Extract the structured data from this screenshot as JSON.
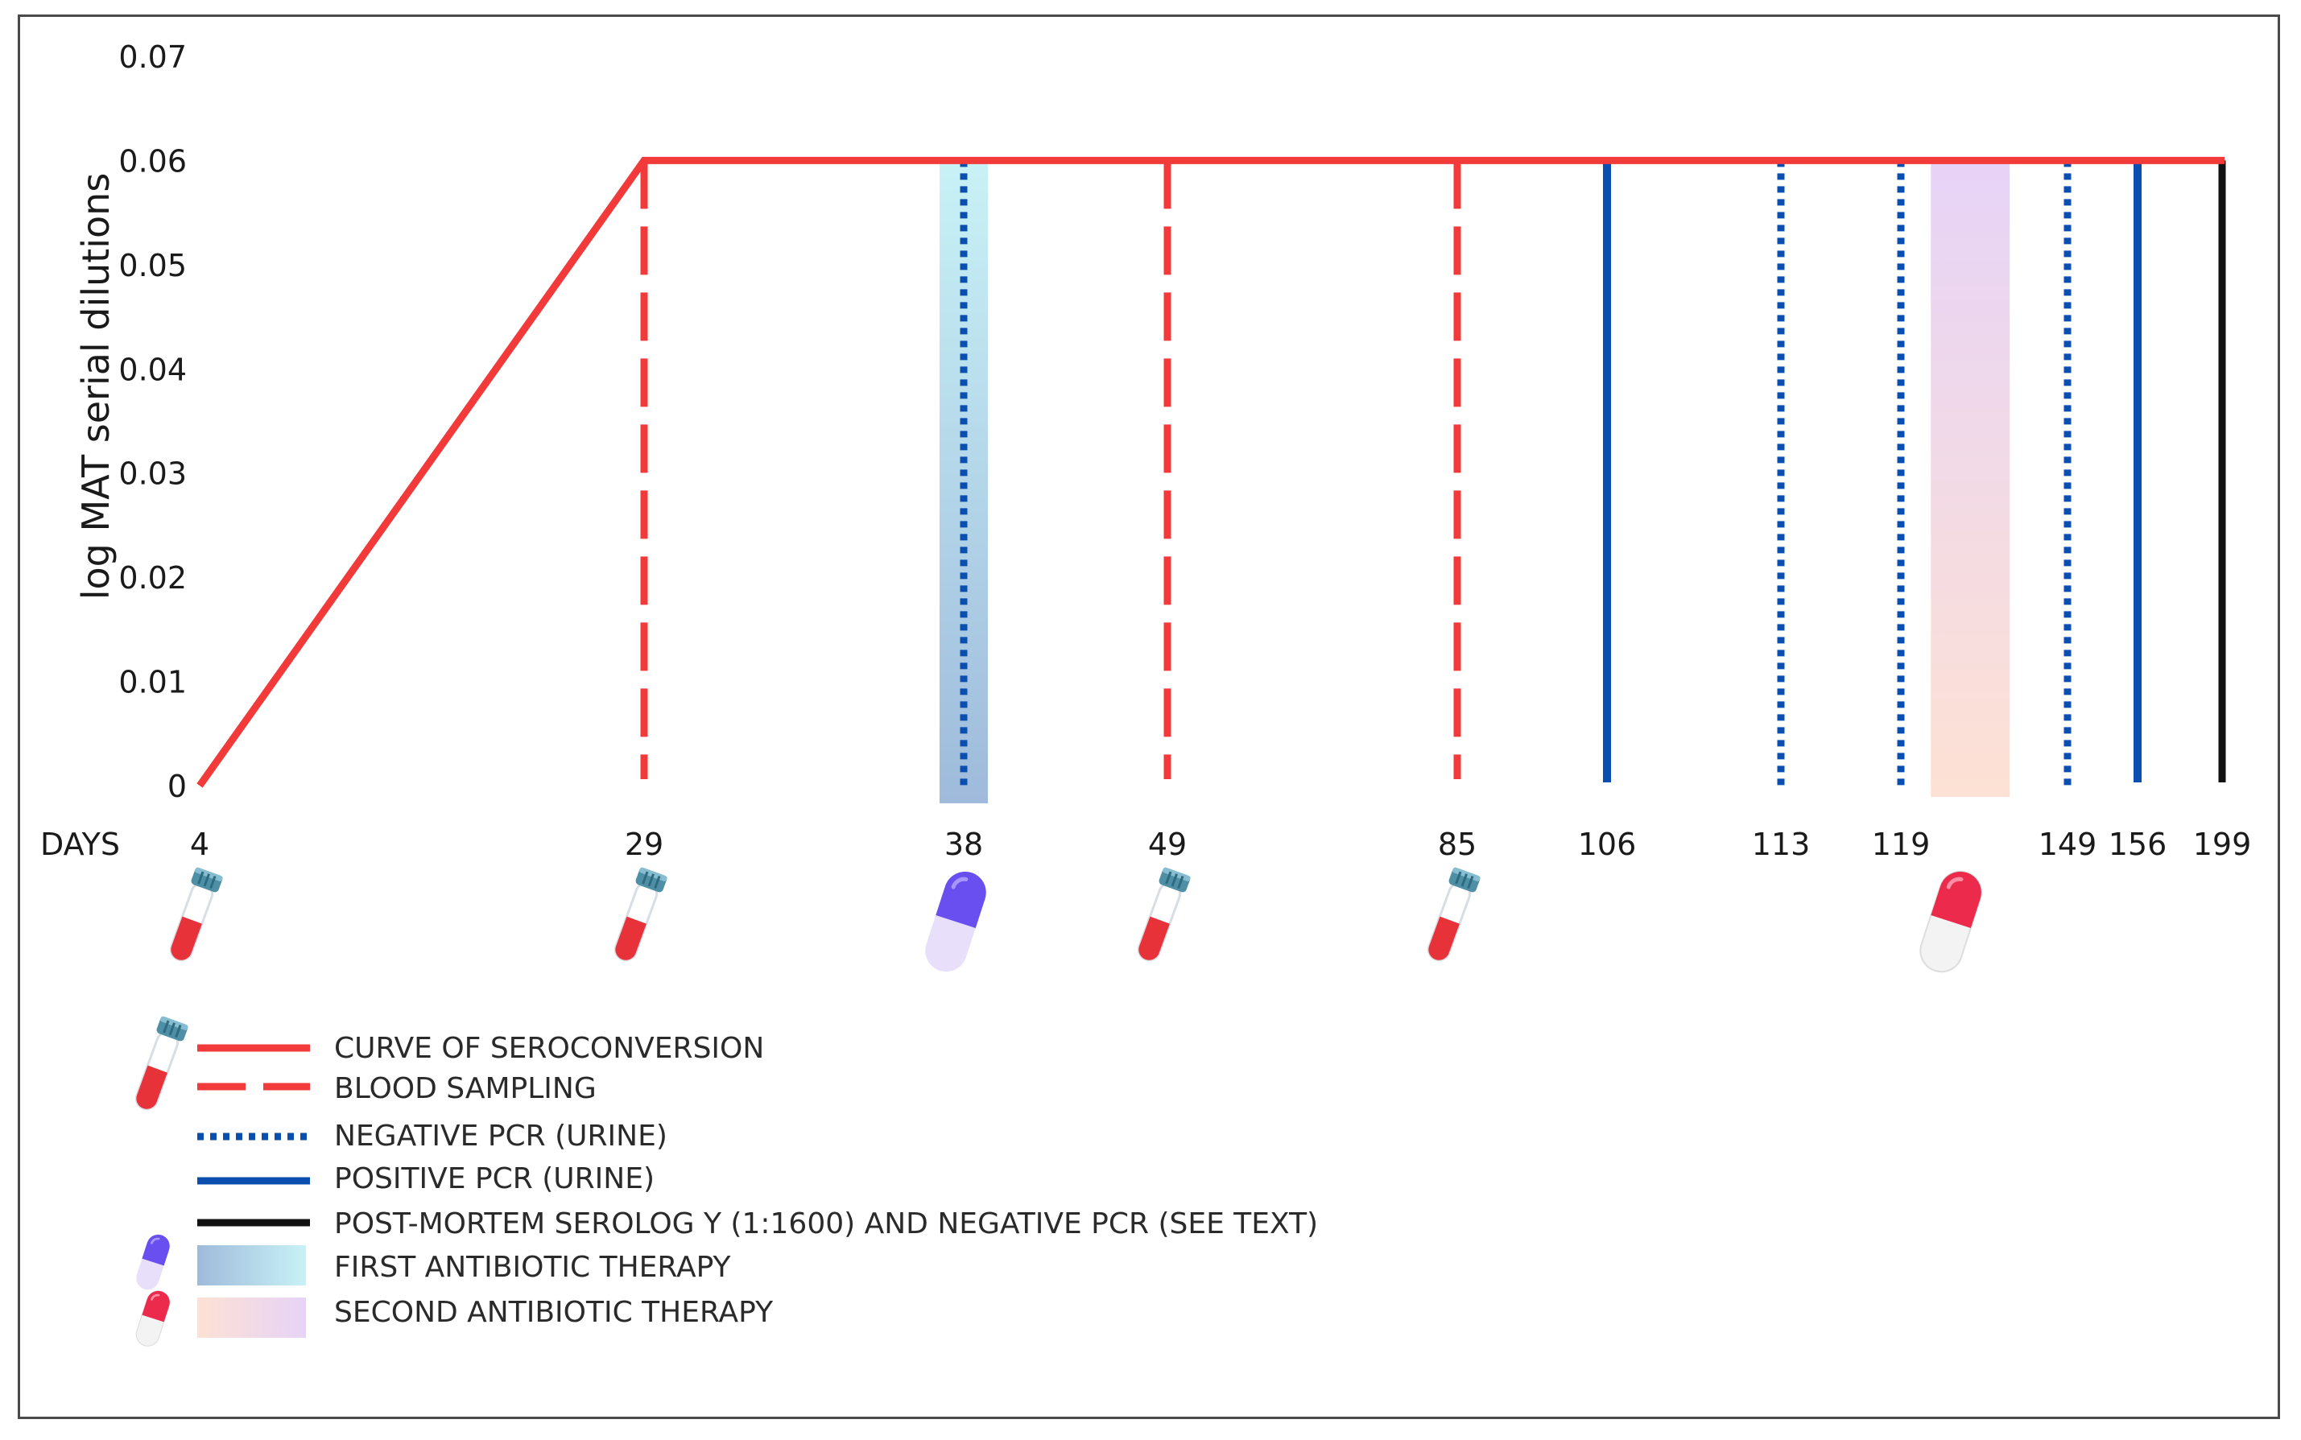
{
  "chart_data": {
    "type": "line",
    "ylabel": "log MAT serial dilutions",
    "x_axis_label": "DAYS",
    "ylim": [
      0,
      0.07
    ],
    "y_ticks": [
      "0",
      "0.01",
      "0.02",
      "0.03",
      "0.04",
      "0.05",
      "0.06",
      "0.07"
    ],
    "x_ticks": [
      4,
      29,
      38,
      49,
      85,
      106,
      113,
      119,
      149,
      156,
      199
    ],
    "series": [
      {
        "name": "CURVE OF SEROCONVERSION",
        "color": "#f23a3a",
        "points": [
          [
            4,
            0
          ],
          [
            29,
            0.06
          ],
          [
            199,
            0.06
          ]
        ]
      }
    ],
    "event_lines": [
      {
        "day": 29,
        "kind": "blood-sampling"
      },
      {
        "day": 38,
        "kind": "negative-pcr"
      },
      {
        "day": 49,
        "kind": "blood-sampling"
      },
      {
        "day": 85,
        "kind": "blood-sampling"
      },
      {
        "day": 106,
        "kind": "positive-pcr"
      },
      {
        "day": 113,
        "kind": "negative-pcr"
      },
      {
        "day": 119,
        "kind": "negative-pcr"
      },
      {
        "day": 149,
        "kind": "negative-pcr"
      },
      {
        "day": 156,
        "kind": "positive-pcr"
      },
      {
        "day": 199,
        "kind": "post-mortem"
      }
    ],
    "therapy_bands": [
      {
        "kind": "first",
        "around_day": 38
      },
      {
        "kind": "second",
        "between": [
          119,
          149
        ]
      }
    ],
    "markers": [
      {
        "day": 4,
        "icon": "blood-tube-icon"
      },
      {
        "day": 29,
        "icon": "blood-tube-icon"
      },
      {
        "day": 38,
        "icon": "purple-capsule-icon"
      },
      {
        "day": 49,
        "icon": "blood-tube-icon"
      },
      {
        "day": 85,
        "icon": "blood-tube-icon"
      },
      {
        "icon": "red-capsule-icon",
        "between": [
          119,
          149
        ]
      }
    ],
    "legend": [
      {
        "label": "CURVE OF SEROCONVERSION",
        "style": "solid-red"
      },
      {
        "label": "BLOOD SAMPLING",
        "style": "dashed-red"
      },
      {
        "label": "NEGATIVE PCR (URINE)",
        "style": "dotted-blue"
      },
      {
        "label": "POSITIVE PCR (URINE)",
        "style": "solid-blue"
      },
      {
        "label": "POST-MORTEM SEROLOG Y (1:1600) AND NEGATIVE PCR (SEE TEXT)",
        "style": "solid-black"
      },
      {
        "label": "FIRST ANTIBIOTIC THERAPY",
        "style": "first-band"
      },
      {
        "label": "SECOND ANTIBIOTIC THERAPY",
        "style": "second-band"
      }
    ],
    "colors": {
      "red": "#f23a3a",
      "blue": "#0a4fb0",
      "black": "#111111",
      "first_band_top": "#c8f2f6",
      "first_band_bottom": "#9fbadb",
      "second_band_top": "#e7d3f7",
      "second_band_bottom": "#fde1d4"
    }
  }
}
